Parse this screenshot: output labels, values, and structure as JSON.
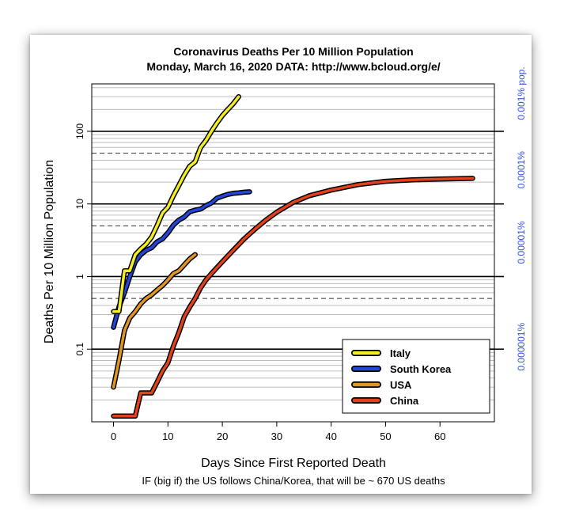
{
  "chart_data": {
    "type": "line",
    "title_line1": "Coronavirus Deaths Per 10 Million Population",
    "title_line2": "Monday, March 16, 2020   DATA: http://www.bcloud.org/e/",
    "xlabel": "Days Since First Reported Death",
    "ylabel": "Deaths Per 10 Million Population",
    "footnote": "IF (big if) the US follows China/Korea, that will be ~ 670 US deaths",
    "y_scale": "log",
    "xlim": [
      -4,
      70
    ],
    "ylim": [
      0.01,
      450
    ],
    "x_ticks": [
      "0",
      "10",
      "20",
      "30",
      "40",
      "50",
      "60"
    ],
    "y_ticks": [
      "100",
      "10",
      "1",
      "0.1"
    ],
    "right_axis_labels": [
      "0.001% pop.",
      "0.0001%",
      "0.00001%",
      "0.000001%"
    ],
    "legend_position": "bottom-right",
    "legend": [
      "Italy",
      "South Korea",
      "USA",
      "China"
    ],
    "colors": {
      "Italy": "#f2ee22",
      "South Korea": "#2146d8",
      "USA": "#e09620",
      "China": "#e3401c",
      "right_axis": "#3355dd"
    },
    "series": [
      {
        "name": "Italy",
        "x": [
          0,
          1,
          2,
          3,
          4,
          5,
          6,
          7,
          8,
          9,
          10,
          11,
          12,
          13,
          14,
          15,
          16,
          17,
          18,
          19,
          20,
          21,
          22,
          23
        ],
        "y": [
          0.33,
          0.33,
          1.2,
          1.2,
          2.0,
          2.4,
          2.8,
          3.5,
          5.0,
          7.5,
          9.0,
          13,
          18,
          25,
          33,
          38,
          60,
          75,
          100,
          130,
          165,
          200,
          240,
          300
        ]
      },
      {
        "name": "South Korea",
        "x": [
          0,
          1,
          2,
          3,
          4,
          5,
          6,
          7,
          8,
          9,
          10,
          11,
          12,
          13,
          14,
          15,
          16,
          17,
          18,
          19,
          20,
          21,
          22,
          23,
          24,
          25
        ],
        "y": [
          0.2,
          0.38,
          0.6,
          1.0,
          1.6,
          2.0,
          2.3,
          2.5,
          3.0,
          3.3,
          4.0,
          5.1,
          6.0,
          6.6,
          7.8,
          8.2,
          8.5,
          9.5,
          10.3,
          12.0,
          12.8,
          13.5,
          14.0,
          14.2,
          14.5,
          14.7
        ]
      },
      {
        "name": "USA",
        "x": [
          0,
          1,
          2,
          3,
          4,
          5,
          6,
          7,
          8,
          9,
          10,
          11,
          12,
          13,
          14,
          15
        ],
        "y": [
          0.03,
          0.07,
          0.18,
          0.27,
          0.33,
          0.42,
          0.5,
          0.56,
          0.65,
          0.75,
          0.9,
          1.1,
          1.2,
          1.45,
          1.75,
          2.0
        ]
      },
      {
        "name": "China",
        "x": [
          0,
          1,
          2,
          3,
          4,
          5,
          6,
          7,
          8,
          9,
          10,
          11,
          12,
          13,
          14,
          15,
          16,
          17,
          18,
          20,
          22,
          24,
          26,
          28,
          30,
          33,
          36,
          40,
          45,
          50,
          55,
          60,
          66
        ],
        "y": [
          0.012,
          0.012,
          0.012,
          0.012,
          0.012,
          0.025,
          0.025,
          0.025,
          0.035,
          0.05,
          0.065,
          0.11,
          0.17,
          0.28,
          0.38,
          0.5,
          0.7,
          0.9,
          1.1,
          1.6,
          2.3,
          3.3,
          4.5,
          6.0,
          7.7,
          10.5,
          13.0,
          15.5,
          18.5,
          20.5,
          21.5,
          22.0,
          22.5
        ]
      }
    ]
  }
}
